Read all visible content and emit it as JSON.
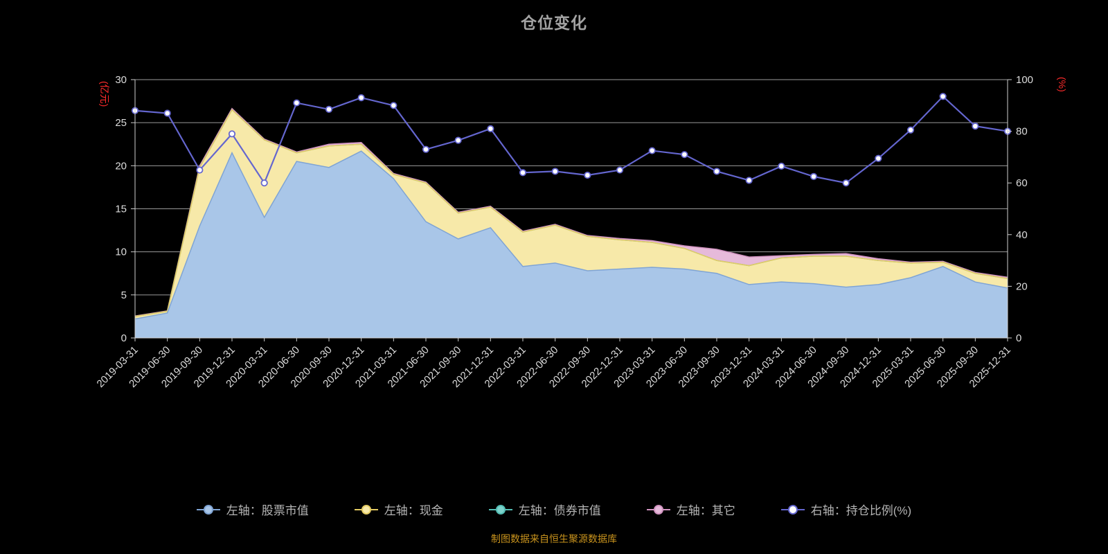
{
  "title": "仓位变化",
  "footnote": "制图数据来自恒生聚源数据库",
  "axes": {
    "left": {
      "name": "(亿元)",
      "ticks": [
        0,
        5,
        10,
        15,
        20,
        25,
        30
      ],
      "name_color": "#ff2b2b",
      "label_color": "#dddddd"
    },
    "right": {
      "name": "(%)",
      "ticks": [
        0,
        20,
        40,
        60,
        80,
        100
      ],
      "name_color": "#ff2b2b",
      "label_color": "#dddddd"
    }
  },
  "chart_data": {
    "type": "area",
    "stacked": true,
    "grid": true,
    "legend_position": "bottom",
    "background": "#000000",
    "grid_color": "#9b9b9b",
    "axis_line_color": "#cfcfcf",
    "left_ylim": [
      0,
      30
    ],
    "right_ylim": [
      0,
      100
    ],
    "categories": [
      "2019-03-31",
      "2019-06-30",
      "2019-09-30",
      "2019-12-31",
      "2020-03-31",
      "2020-06-30",
      "2020-09-30",
      "2020-12-31",
      "2021-03-31",
      "2021-06-30",
      "2021-09-30",
      "2021-12-31",
      "2022-03-31",
      "2022-06-30",
      "2022-09-30",
      "2022-12-31",
      "2023-03-31",
      "2023-06-30",
      "2023-09-30",
      "2023-12-31",
      "2024-03-31",
      "2024-06-30",
      "2024-09-30",
      "2024-12-31",
      "2025-03-31",
      "2025-06-30",
      "2025-09-30",
      "2025-12-31"
    ],
    "series": [
      {
        "name": "左轴：股票市值",
        "type": "area",
        "axis": "left",
        "fill": "#a9c6e8",
        "stroke": "#7fa4d4",
        "values": [
          2.2,
          2.9,
          13.0,
          21.5,
          14.0,
          20.5,
          19.8,
          21.7,
          18.5,
          13.5,
          11.5,
          12.8,
          8.3,
          8.7,
          7.8,
          8.0,
          8.2,
          8.0,
          7.5,
          6.2,
          6.5,
          6.3,
          5.9,
          6.2,
          7.0,
          8.3,
          6.5,
          5.8
        ]
      },
      {
        "name": "左轴：现金",
        "type": "area",
        "axis": "left",
        "fill": "#f7e9a9",
        "stroke": "#e4cb62",
        "values": [
          0.3,
          0.2,
          6.8,
          5.0,
          9.0,
          1.0,
          2.5,
          0.8,
          0.5,
          4.5,
          3.0,
          2.4,
          4.0,
          4.4,
          4.0,
          3.4,
          2.9,
          2.4,
          1.5,
          2.2,
          2.8,
          3.2,
          3.6,
          2.8,
          1.7,
          0.5,
          1.0,
          1.1
        ]
      },
      {
        "name": "左轴：债券市值",
        "type": "area",
        "axis": "left",
        "fill": "#7ed3cc",
        "stroke": "#53bdb4",
        "values": [
          0,
          0,
          0,
          0,
          0,
          0,
          0,
          0,
          0,
          0,
          0,
          0,
          0,
          0,
          0,
          0,
          0,
          0,
          0,
          0,
          0,
          0,
          0,
          0,
          0,
          0,
          0,
          0
        ]
      },
      {
        "name": "左轴：其它",
        "type": "area",
        "axis": "left",
        "fill": "#e6bada",
        "stroke": "#d193c0",
        "values": [
          0.05,
          0.05,
          0.2,
          0.15,
          0.1,
          0.1,
          0.2,
          0.2,
          0.1,
          0.1,
          0.1,
          0.1,
          0.1,
          0.1,
          0.1,
          0.15,
          0.2,
          0.3,
          1.3,
          1.0,
          0.25,
          0.2,
          0.3,
          0.2,
          0.1,
          0.1,
          0.1,
          0.15
        ]
      },
      {
        "name": "右轴：持仓比例(%)",
        "type": "line",
        "axis": "right",
        "stroke": "#6466cf",
        "marker_fill": "#ffffff",
        "values": [
          88,
          87,
          65,
          79,
          60,
          91,
          88.5,
          93,
          90,
          73,
          76.5,
          81,
          64,
          64.5,
          63,
          65,
          72.5,
          71,
          64.5,
          61,
          66.5,
          62.5,
          60,
          69.5,
          80.5,
          93.5,
          82,
          80
        ]
      }
    ]
  }
}
